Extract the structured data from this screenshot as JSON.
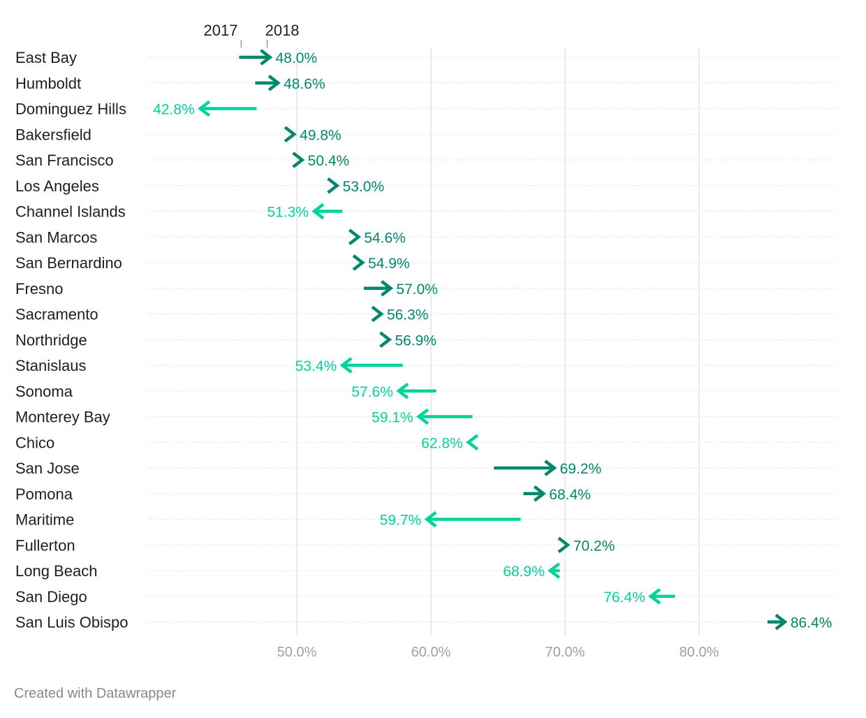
{
  "chart_data": {
    "type": "arrow",
    "legend": {
      "from_label": "2017",
      "to_label": "2018"
    },
    "x_ticks": [
      50,
      60,
      70,
      80
    ],
    "x_tick_labels": [
      "50.0%",
      "60.0%",
      "70.0%",
      "80.0%"
    ],
    "xlim": [
      39,
      90
    ],
    "grid": true,
    "colors": {
      "increase": "#00876c",
      "decrease": "#00d49a",
      "gridline": "#e3e3e3",
      "rowline": "#d7d7d7",
      "tick_label": "#a0a0a0",
      "category_label": "#1f1f1f"
    },
    "rows": [
      {
        "name": "East Bay",
        "from": 45.7,
        "to": 48.0,
        "label": "48.0%"
      },
      {
        "name": "Humboldt",
        "from": 46.9,
        "to": 48.6,
        "label": "48.6%"
      },
      {
        "name": "Dominguez Hills",
        "from": 47.0,
        "to": 42.8,
        "label": "42.8%"
      },
      {
        "name": "Bakersfield",
        "from": 49.4,
        "to": 49.8,
        "label": "49.8%"
      },
      {
        "name": "San Francisco",
        "from": 49.9,
        "to": 50.4,
        "label": "50.4%"
      },
      {
        "name": "Los Angeles",
        "from": 52.5,
        "to": 53.0,
        "label": "53.0%"
      },
      {
        "name": "Channel Islands",
        "from": 53.4,
        "to": 51.3,
        "label": "51.3%"
      },
      {
        "name": "San Marcos",
        "from": 54.1,
        "to": 54.6,
        "label": "54.6%"
      },
      {
        "name": "San Bernardino",
        "from": 54.4,
        "to": 54.9,
        "label": "54.9%"
      },
      {
        "name": "Fresno",
        "from": 55.0,
        "to": 57.0,
        "label": "57.0%"
      },
      {
        "name": "Sacramento",
        "from": 55.8,
        "to": 56.3,
        "label": "56.3%"
      },
      {
        "name": "Northridge",
        "from": 56.4,
        "to": 56.9,
        "label": "56.9%"
      },
      {
        "name": "Stanislaus",
        "from": 57.9,
        "to": 53.4,
        "label": "53.4%"
      },
      {
        "name": "Sonoma",
        "from": 60.4,
        "to": 57.6,
        "label": "57.6%"
      },
      {
        "name": "Monterey Bay",
        "from": 63.1,
        "to": 59.1,
        "label": "59.1%"
      },
      {
        "name": "Chico",
        "from": 63.3,
        "to": 62.8,
        "label": "62.8%"
      },
      {
        "name": "San Jose",
        "from": 64.7,
        "to": 69.2,
        "label": "69.2%"
      },
      {
        "name": "Pomona",
        "from": 66.9,
        "to": 68.4,
        "label": "68.4%"
      },
      {
        "name": "Maritime",
        "from": 66.7,
        "to": 59.7,
        "label": "59.7%"
      },
      {
        "name": "Fullerton",
        "from": 69.7,
        "to": 70.2,
        "label": "70.2%"
      },
      {
        "name": "Long Beach",
        "from": 69.6,
        "to": 68.9,
        "label": "68.9%"
      },
      {
        "name": "San Diego",
        "from": 78.2,
        "to": 76.4,
        "label": "76.4%"
      },
      {
        "name": "San Luis Obispo",
        "from": 85.1,
        "to": 86.4,
        "label": "86.4%"
      }
    ]
  },
  "footer": {
    "credit": "Created with Datawrapper"
  }
}
